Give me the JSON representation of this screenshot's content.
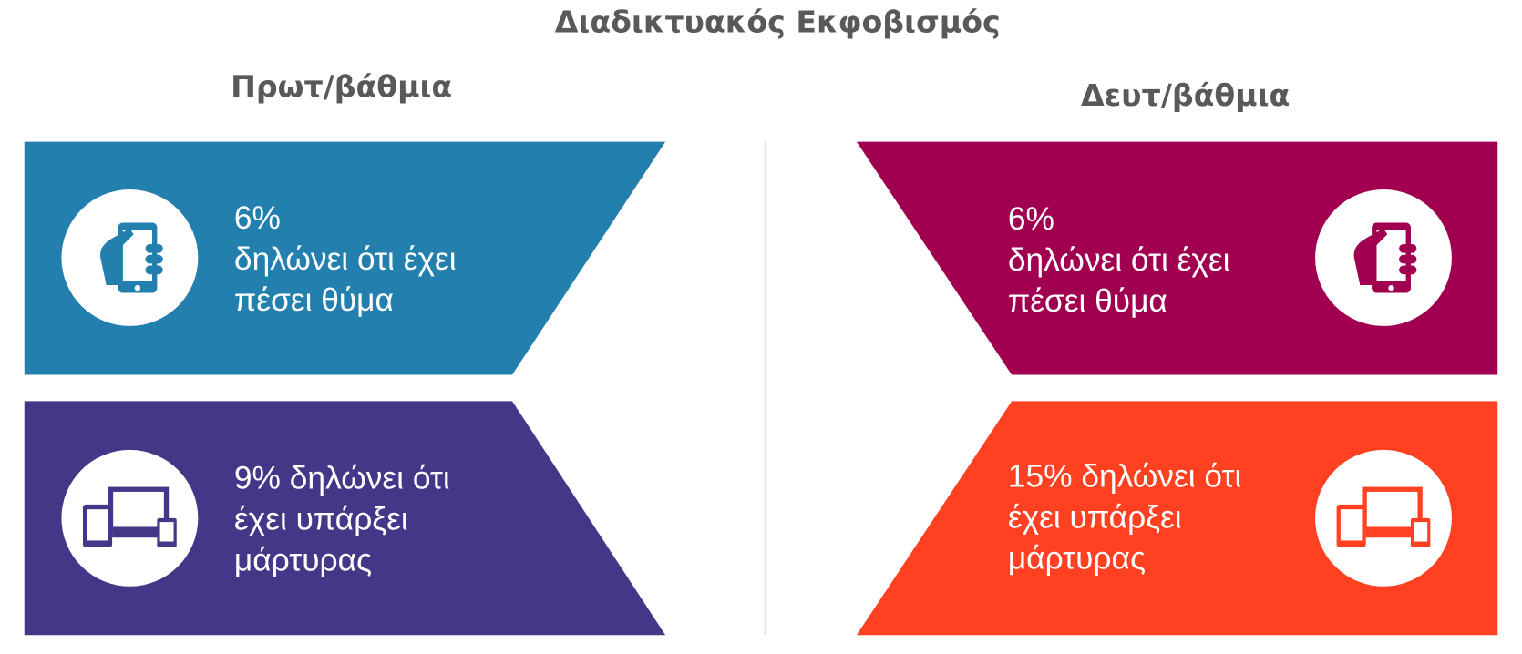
{
  "title": "Διαδικτυακός Εκφοβισμός",
  "columns": [
    {
      "heading": "Πρωτ/βάθμια",
      "cards": [
        {
          "lines": [
            "6%",
            "δηλώνει ότι έχει",
            "πέσει θύμα"
          ]
        },
        {
          "lines": [
            "9% δηλώνει ότι",
            "έχει υπάρξει",
            "μάρτυρας"
          ]
        }
      ]
    },
    {
      "heading": "Δευτ/βάθμια",
      "cards": [
        {
          "lines": [
            "6%",
            "δηλώνει ότι έχει",
            "πέσει θύμα"
          ]
        },
        {
          "lines": [
            "15% δηλώνει ότι",
            "έχει υπάρξει",
            "μάρτυρας"
          ]
        }
      ]
    }
  ]
}
